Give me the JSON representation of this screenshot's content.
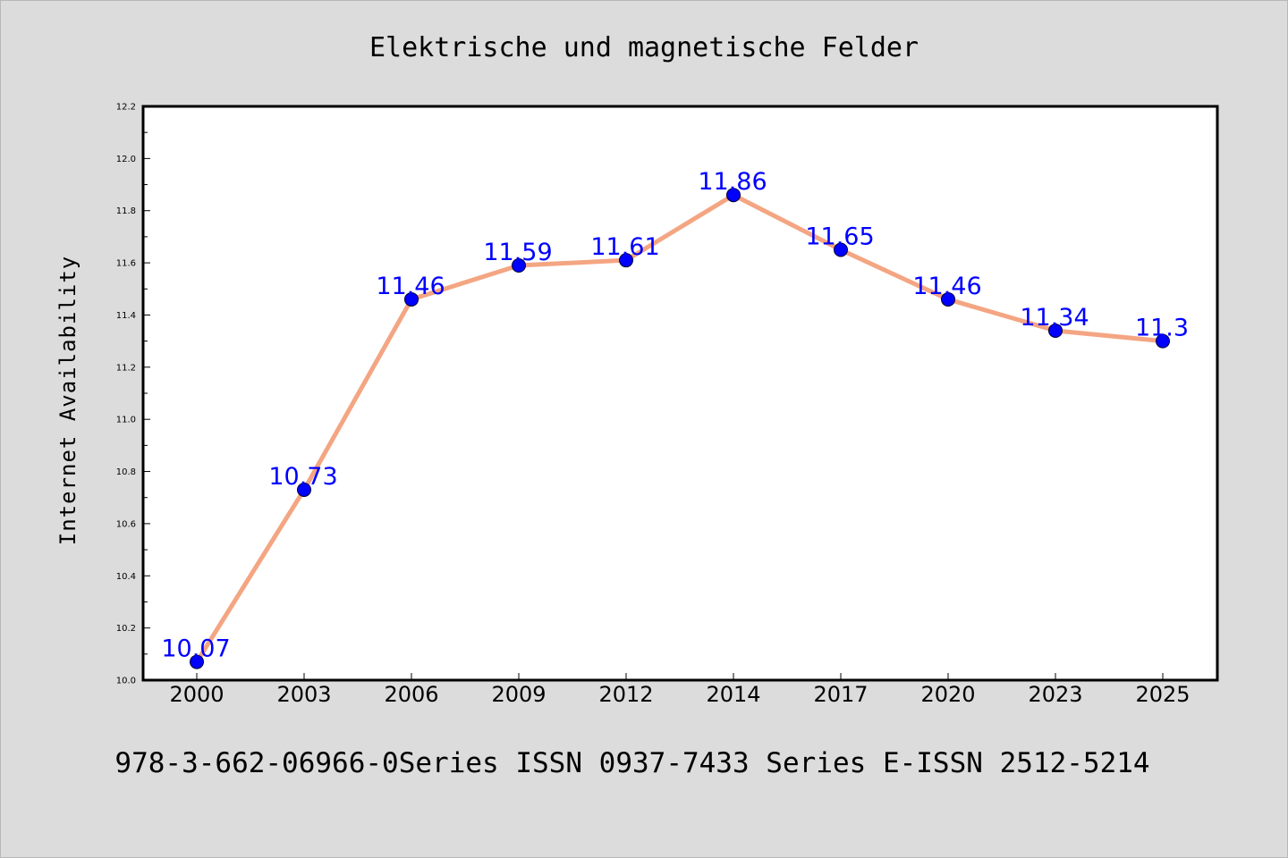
{
  "colors": {
    "background": "#dcdcdc",
    "plot_background": "#ffffff",
    "line": "#f4a582",
    "marker": "#0000ff",
    "data_label": "#0000ff"
  },
  "footer": "978-3-662-06966-0Series ISSN 0937-7433 Series E-ISSN 2512-5214",
  "chart_data": {
    "type": "line",
    "title": "Elektrische und magnetische Felder",
    "xlabel": "",
    "ylabel": "Internet Availability",
    "categories": [
      "2000",
      "2003",
      "2006",
      "2009",
      "2012",
      "2014",
      "2017",
      "2020",
      "2023",
      "2025"
    ],
    "series": [
      {
        "values": [
          10.07,
          10.73,
          11.46,
          11.59,
          11.61,
          11.86,
          11.65,
          11.46,
          11.34,
          11.3
        ]
      }
    ],
    "data_labels": [
      "10.07",
      "10.73",
      "11.46",
      "11.59",
      "11.61",
      "11.86",
      "11.65",
      "11.46",
      "11.34",
      "11.3"
    ],
    "ylim": [
      10.0,
      12.2
    ],
    "yticks": [
      "10.0",
      "10.2",
      "10.4",
      "10.6",
      "10.8",
      "11.0",
      "11.2",
      "11.4",
      "11.6",
      "11.8",
      "12.0",
      "12.2"
    ],
    "grid": false,
    "legend": "none"
  }
}
